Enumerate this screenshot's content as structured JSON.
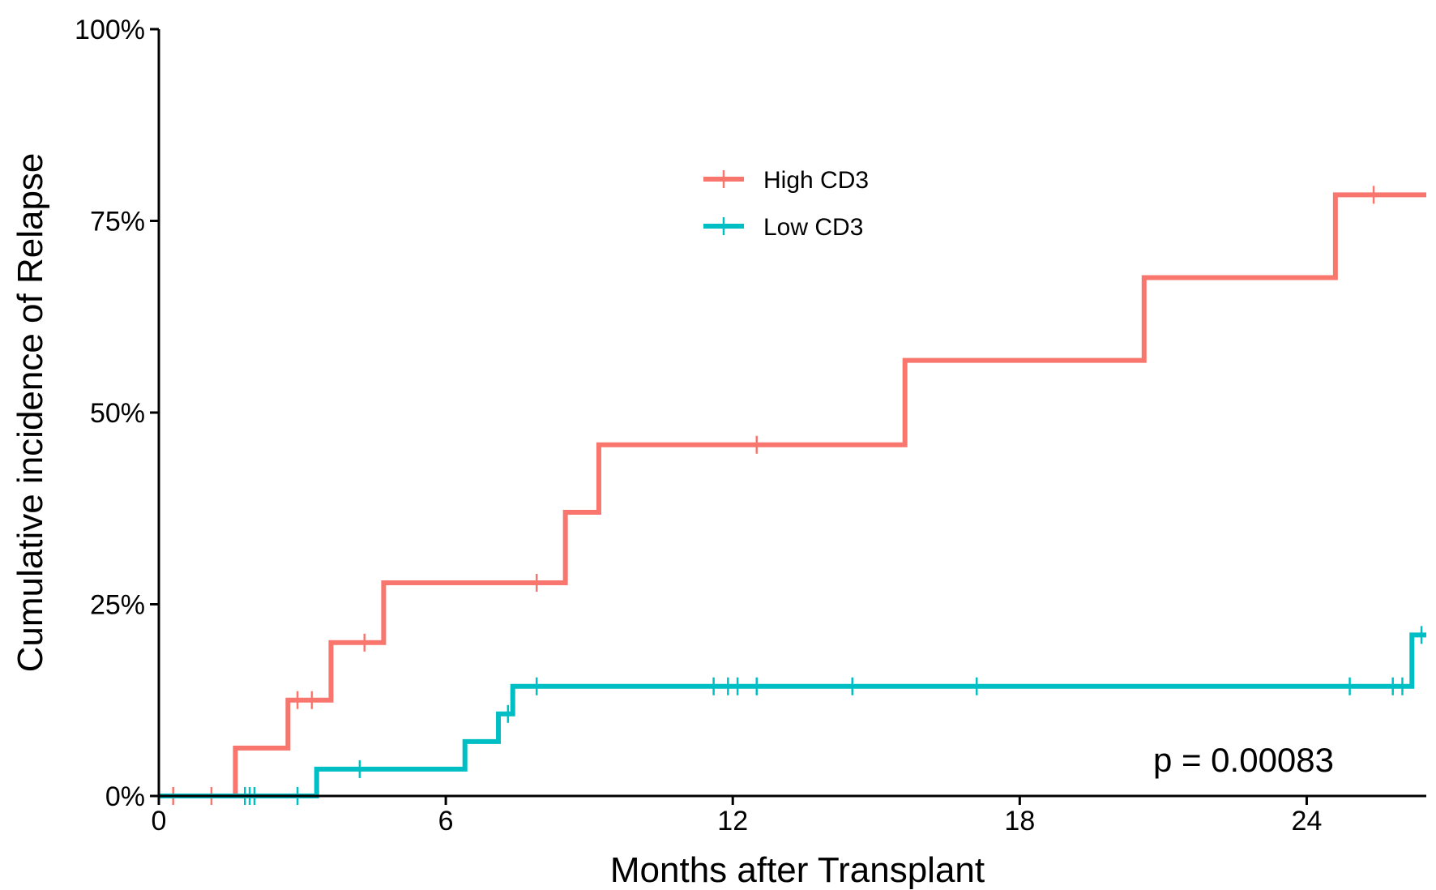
{
  "chart_data": {
    "type": "line",
    "subtype": "step",
    "title": "",
    "xlabel": "Months after Transplant",
    "ylabel": "Cumulative incidence of Relapse",
    "xlim": [
      0,
      26.5
    ],
    "ylim": [
      0,
      1
    ],
    "x_ticks": [
      0,
      6,
      12,
      18,
      24
    ],
    "x_tick_labels": [
      "0",
      "6",
      "12",
      "18",
      "24"
    ],
    "y_ticks": [
      0,
      0.25,
      0.5,
      0.75,
      1.0
    ],
    "y_tick_labels": [
      "0%",
      "25%",
      "50%",
      "75%",
      "100%"
    ],
    "grid": false,
    "legend_position": "top-center",
    "annotation": "p = 0.00083",
    "series": [
      {
        "name": "High CD3",
        "color": "#F8766D",
        "steps": [
          [
            0,
            0
          ],
          [
            1.6,
            0.0625
          ],
          [
            2.7,
            0.125
          ],
          [
            3.6,
            0.2
          ],
          [
            4.7,
            0.278
          ],
          [
            8.5,
            0.37
          ],
          [
            9.2,
            0.458
          ],
          [
            15.6,
            0.568
          ],
          [
            20.6,
            0.676
          ],
          [
            24.6,
            0.784
          ],
          [
            26.5,
            0.784
          ]
        ],
        "censored": [
          [
            0.3,
            0
          ],
          [
            1.1,
            0
          ],
          [
            2.9,
            0.125
          ],
          [
            3.2,
            0.125
          ],
          [
            4.3,
            0.2
          ],
          [
            7.9,
            0.278
          ],
          [
            12.5,
            0.458
          ],
          [
            25.4,
            0.784
          ]
        ]
      },
      {
        "name": "Low CD3",
        "color": "#00BFC4",
        "steps": [
          [
            0,
            0
          ],
          [
            3.3,
            0.035
          ],
          [
            6.4,
            0.071
          ],
          [
            7.1,
            0.107
          ],
          [
            7.4,
            0.143
          ],
          [
            26.2,
            0.143
          ],
          [
            26.2,
            0.21
          ],
          [
            26.5,
            0.21
          ]
        ],
        "censored": [
          [
            1.8,
            0
          ],
          [
            1.9,
            0
          ],
          [
            2.0,
            0
          ],
          [
            2.9,
            0
          ],
          [
            4.2,
            0.035
          ],
          [
            7.3,
            0.107
          ],
          [
            7.9,
            0.143
          ],
          [
            11.6,
            0.143
          ],
          [
            11.9,
            0.143
          ],
          [
            12.1,
            0.143
          ],
          [
            12.5,
            0.143
          ],
          [
            14.5,
            0.143
          ],
          [
            17.1,
            0.143
          ],
          [
            24.9,
            0.143
          ],
          [
            25.8,
            0.143
          ],
          [
            26.0,
            0.143
          ],
          [
            26.4,
            0.21
          ]
        ]
      }
    ]
  }
}
